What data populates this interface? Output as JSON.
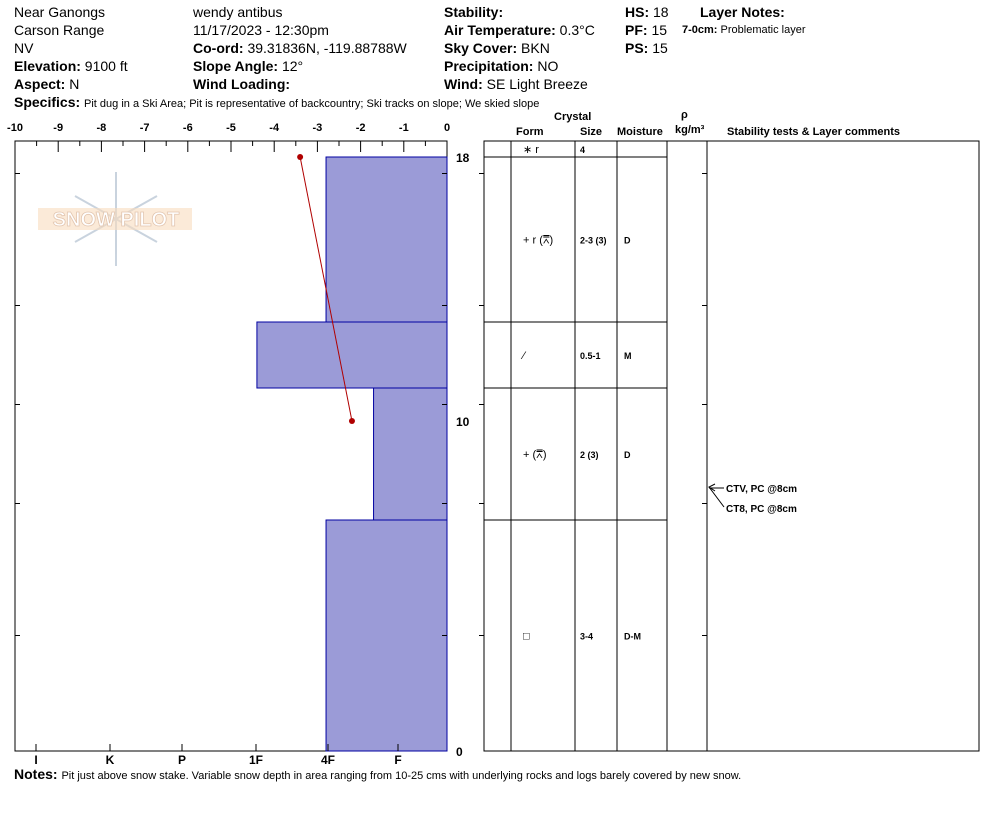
{
  "header": {
    "location": "Near Ganongs",
    "range": "Carson Range",
    "state": "NV",
    "elevation_label": "Elevation:",
    "elevation": "9100 ft",
    "aspect_label": "Aspect:",
    "aspect": "N",
    "observer": "wendy antibus",
    "datetime": "11/17/2023 - 12:30pm",
    "coord_label": "Co-ord:",
    "coord": "39.31836N, -119.88788W",
    "slope_label": "Slope Angle:",
    "slope": "12°",
    "wind_loading_label": "Wind Loading:",
    "wind_loading": "",
    "stability_label": "Stability:",
    "stability": "",
    "air_temp_label": "Air Temperature:",
    "air_temp": "0.3°C",
    "sky_label": "Sky Cover:",
    "sky": "BKN",
    "precip_label": "Precipitation:",
    "precip": "NO",
    "wind_label": "Wind:",
    "wind": "SE  Light Breeze",
    "hs_label": "HS:",
    "hs": "18",
    "pf_label": "PF:",
    "pf": "15",
    "ps_label": "PS:",
    "ps": "15",
    "layer_notes_label": "Layer Notes:",
    "layer_note_range": "7-0cm:",
    "layer_note_text": "Problematic layer",
    "specifics_label": "Specifics:",
    "specifics": "Pit dug in a Ski Area;  Pit is representative of backcountry;  Ski tracks on slope;  We skied slope",
    "notes_label": "Notes:",
    "notes": "Pit just above snow stake.  Variable snow depth in area ranging from 10-25 cms with underlying rocks and logs barely covered by new snow."
  },
  "logo": {
    "text": "SNOW PILOT"
  },
  "columns": {
    "crystal": "Crystal",
    "form": "Form",
    "size": "Size",
    "moisture": "Moisture",
    "rho": "ρ",
    "density_unit": "kg/m³",
    "stability_comments": "Stability tests & Layer comments"
  },
  "colors": {
    "hardness_fill": "#9b9bd7",
    "hardness_stroke": "#0000a0",
    "temp_line": "#b00000"
  },
  "chart_data": {
    "type": "bar",
    "description_axes": {
      "temperature_ticks": [
        "-10",
        "-9",
        "-8",
        "-7",
        "-6",
        "-5",
        "-4",
        "-3",
        "-2",
        "-1",
        "0"
      ],
      "temperature_range": [
        -10,
        0
      ],
      "hardness_ticks": [
        "I",
        "K",
        "P",
        "1F",
        "4F",
        "F"
      ],
      "depth_ticks": [
        "18",
        "10",
        "0"
      ],
      "depth_range": [
        0,
        18
      ]
    },
    "hardness_layers": [
      {
        "top": 18,
        "bottom": 13,
        "temp_extent": -2.8
      },
      {
        "top": 13,
        "bottom": 11,
        "temp_extent": -4.4
      },
      {
        "top": 11,
        "bottom": 7,
        "temp_extent": -1.7
      },
      {
        "top": 7,
        "bottom": 0,
        "temp_extent": -2.8
      }
    ],
    "temperature_profile": [
      {
        "depth": 18,
        "temp": -3.4
      },
      {
        "depth": 10,
        "temp": -2.2
      }
    ]
  },
  "layers": [
    {
      "top": 18,
      "bottom": 18,
      "form": "∗ r",
      "size": "4",
      "moisture": ""
    },
    {
      "top": 18,
      "bottom": 13,
      "form": "+ r (⩞)",
      "size": "2-3 (3)",
      "moisture": "D"
    },
    {
      "top": 13,
      "bottom": 11,
      "form": "⁄",
      "size": "0.5-1",
      "moisture": "M"
    },
    {
      "top": 11,
      "bottom": 7,
      "form": "+ (⩞)",
      "size": "2 (3)",
      "moisture": "D"
    },
    {
      "top": 7,
      "bottom": 0,
      "form": "□",
      "size": "3-4",
      "moisture": "D-M"
    }
  ],
  "tests": [
    {
      "label": "CTV, PC @8cm"
    },
    {
      "label": "CT8, PC @8cm"
    }
  ]
}
